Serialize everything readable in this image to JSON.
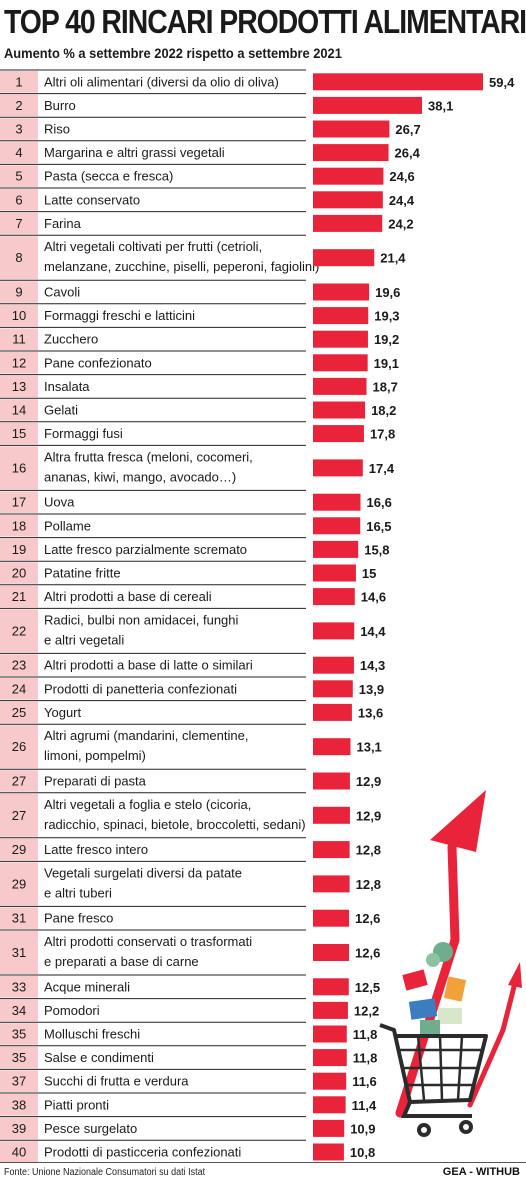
{
  "chart_data": {
    "type": "bar",
    "orientation": "horizontal",
    "title": "TOP 40 RINCARI PRODOTTI ALIMENTARI",
    "subtitle": "Aumento % a settembre 2022 rispetto a settembre 2021",
    "ranks": [
      "1",
      "2",
      "3",
      "4",
      "5",
      "6",
      "7",
      "8",
      "9",
      "10",
      "11",
      "12",
      "13",
      "14",
      "15",
      "16",
      "17",
      "18",
      "19",
      "20",
      "21",
      "22",
      "23",
      "24",
      "25",
      "26",
      "27",
      "27",
      "29",
      "29",
      "31",
      "31",
      "33",
      "34",
      "35",
      "35",
      "37",
      "38",
      "39",
      "40"
    ],
    "categories": [
      [
        "Altri oli alimentari (diversi da olio di oliva)"
      ],
      [
        "Burro"
      ],
      [
        "Riso"
      ],
      [
        "Margarina e altri grassi vegetali"
      ],
      [
        "Pasta (secca e fresca)"
      ],
      [
        "Latte conservato"
      ],
      [
        "Farina"
      ],
      [
        "Altri vegetali coltivati per frutti (cetrioli,",
        "melanzane, zucchine, piselli, peperoni, fagiolini)"
      ],
      [
        "Cavoli"
      ],
      [
        "Formaggi freschi e latticini"
      ],
      [
        "Zucchero"
      ],
      [
        "Pane confezionato"
      ],
      [
        "Insalata"
      ],
      [
        "Gelati"
      ],
      [
        "Formaggi fusi"
      ],
      [
        "Altra frutta fresca (meloni, cocomeri,",
        "ananas, kiwi, mango, avocado…)"
      ],
      [
        "Uova"
      ],
      [
        "Pollame"
      ],
      [
        "Latte fresco parzialmente scremato"
      ],
      [
        "Patatine fritte"
      ],
      [
        "Altri prodotti a base di cereali"
      ],
      [
        "Radici, bulbi non amidacei, funghi",
        "e altri vegetali"
      ],
      [
        "Altri prodotti a base di latte o similari"
      ],
      [
        "Prodotti di panetteria confezionati"
      ],
      [
        "Yogurt"
      ],
      [
        "Altri agrumi (mandarini, clementine,",
        "limoni, pompelmi)"
      ],
      [
        "Preparati di pasta"
      ],
      [
        "Altri vegetali a foglia e stelo (cicoria,",
        "radicchio, spinaci, bietole, broccoletti, sedani)"
      ],
      [
        "Latte fresco intero"
      ],
      [
        "Vegetali surgelati diversi da patate",
        "e altri tuberi"
      ],
      [
        "Pane fresco"
      ],
      [
        "Altri prodotti conservati o trasformati",
        "e preparati a base di carne"
      ],
      [
        "Acque minerali"
      ],
      [
        "Pomodori"
      ],
      [
        "Molluschi freschi"
      ],
      [
        "Salse e condimenti"
      ],
      [
        "Succhi di frutta e verdura"
      ],
      [
        "Piatti pronti"
      ],
      [
        "Pesce surgelato"
      ],
      [
        "Prodotti di pasticceria confezionati"
      ]
    ],
    "values": [
      59.4,
      38.1,
      26.7,
      26.4,
      24.6,
      24.4,
      24.2,
      21.4,
      19.6,
      19.3,
      19.2,
      19.1,
      18.7,
      18.2,
      17.8,
      17.4,
      16.6,
      16.5,
      15.8,
      15,
      14.6,
      14.4,
      14.3,
      13.9,
      13.6,
      13.1,
      12.9,
      12.9,
      12.8,
      12.8,
      12.6,
      12.6,
      12.5,
      12.2,
      11.8,
      11.8,
      11.6,
      11.4,
      10.9,
      10.8
    ],
    "value_labels": [
      "59,4",
      "38,1",
      "26,7",
      "26,4",
      "24,6",
      "24,4",
      "24,2",
      "21,4",
      "19,6",
      "19,3",
      "19,2",
      "19,1",
      "18,7",
      "18,2",
      "17,8",
      "17,4",
      "16,6",
      "16,5",
      "15,8",
      "15",
      "14,6",
      "14,4",
      "14,3",
      "13,9",
      "13,6",
      "13,1",
      "12,9",
      "12,9",
      "12,8",
      "12,8",
      "12,6",
      "12,6",
      "12,5",
      "12,2",
      "11,8",
      "11,8",
      "11,6",
      "11,4",
      "10,9",
      "10,8"
    ],
    "grid": false,
    "legend": "none"
  },
  "footer": {
    "source": "Fonte: Unione Nazionale Consumatori su dati Istat",
    "credit": "GEA - WITHUB"
  },
  "colors": {
    "bar": "#e8233a",
    "rank_cell": "#f7c9cb",
    "row_line": "#222222"
  },
  "illustration": "shopping-cart-with-rising-arrow"
}
